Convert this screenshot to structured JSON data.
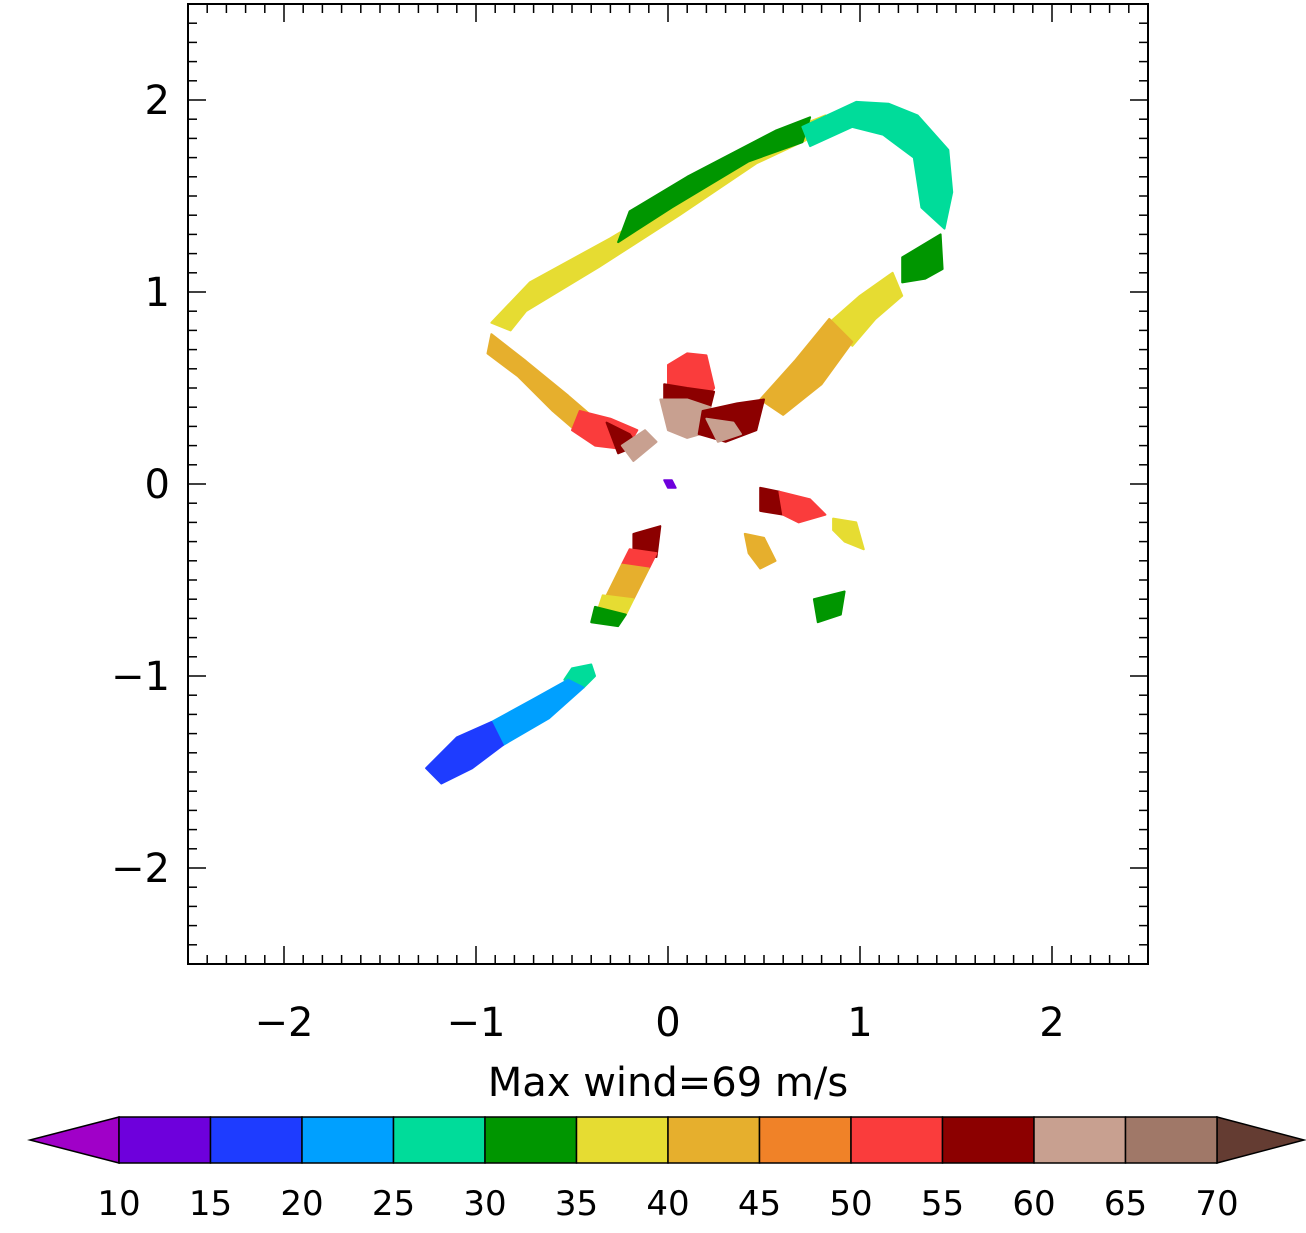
{
  "chart_data": {
    "type": "heatmap",
    "title": "",
    "xlabel": "Max wind=69 m/s",
    "ylabel": "",
    "xlim": [
      -2.5,
      2.5
    ],
    "ylim": [
      -2.5,
      2.5
    ],
    "xticks": [
      "−2",
      "−1",
      "0",
      "1",
      "2"
    ],
    "xtick_values": [
      -2,
      -1,
      0,
      1,
      2
    ],
    "yticks": [
      "2",
      "1",
      "0",
      "−1",
      "−2"
    ],
    "ytick_values": [
      2,
      1,
      0,
      -1,
      -2
    ],
    "grid": false,
    "colorbar": {
      "orientation": "horizontal",
      "placement": "bottom",
      "extend": "both",
      "levels": [
        "10",
        "15",
        "20",
        "25",
        "30",
        "35",
        "40",
        "45",
        "50",
        "55",
        "60",
        "65",
        "70"
      ],
      "level_values": [
        10,
        15,
        20,
        25,
        30,
        35,
        40,
        45,
        50,
        55,
        60,
        65,
        70
      ],
      "under_color": "#a000c8",
      "over_color": "#643c32",
      "colors": [
        "#6e00dc",
        "#1e3cff",
        "#00a0ff",
        "#00dc9a",
        "#009600",
        "#e6dc32",
        "#e6af2d",
        "#f08228",
        "#fa3c3c",
        "#8c0000",
        "#c8a090",
        "#a07868"
      ]
    },
    "wind_regions": [
      {
        "name": "ring-left-upper",
        "value": 37,
        "points": [
          [
            -0.92,
            0.84
          ],
          [
            -0.72,
            1.05
          ],
          [
            -0.3,
            1.28
          ],
          [
            0.1,
            1.52
          ],
          [
            0.52,
            1.8
          ],
          [
            0.82,
            1.92
          ],
          [
            0.78,
            1.82
          ],
          [
            0.46,
            1.67
          ],
          [
            0.06,
            1.4
          ],
          [
            -0.36,
            1.13
          ],
          [
            -0.74,
            0.9
          ],
          [
            -0.82,
            0.8
          ]
        ]
      },
      {
        "name": "ring-top-green",
        "value": 32,
        "points": [
          [
            -0.2,
            1.42
          ],
          [
            0.1,
            1.6
          ],
          [
            0.56,
            1.84
          ],
          [
            0.74,
            1.91
          ],
          [
            0.7,
            1.78
          ],
          [
            0.42,
            1.68
          ],
          [
            0.02,
            1.44
          ],
          [
            -0.26,
            1.26
          ]
        ]
      },
      {
        "name": "ring-top-right",
        "value": 28,
        "points": [
          [
            0.7,
            1.86
          ],
          [
            0.98,
            1.99
          ],
          [
            1.15,
            1.98
          ],
          [
            1.3,
            1.92
          ],
          [
            1.46,
            1.74
          ],
          [
            1.48,
            1.52
          ],
          [
            1.44,
            1.33
          ],
          [
            1.32,
            1.44
          ],
          [
            1.28,
            1.7
          ],
          [
            1.12,
            1.82
          ],
          [
            0.96,
            1.86
          ],
          [
            0.74,
            1.76
          ]
        ]
      },
      {
        "name": "ring-right-green",
        "value": 33,
        "points": [
          [
            1.22,
            1.18
          ],
          [
            1.42,
            1.3
          ],
          [
            1.43,
            1.12
          ],
          [
            1.34,
            1.07
          ],
          [
            1.22,
            1.05
          ]
        ]
      },
      {
        "name": "ring-right-yellow",
        "value": 38,
        "points": [
          [
            0.84,
            0.84
          ],
          [
            1.0,
            0.98
          ],
          [
            1.17,
            1.1
          ],
          [
            1.22,
            0.98
          ],
          [
            1.08,
            0.86
          ],
          [
            0.96,
            0.72
          ]
        ]
      },
      {
        "name": "ring-right-orange",
        "value": 42,
        "points": [
          [
            0.48,
            0.44
          ],
          [
            0.66,
            0.64
          ],
          [
            0.84,
            0.86
          ],
          [
            0.96,
            0.74
          ],
          [
            0.8,
            0.52
          ],
          [
            0.6,
            0.36
          ]
        ]
      },
      {
        "name": "ring-left-orange",
        "value": 42,
        "points": [
          [
            -0.92,
            0.78
          ],
          [
            -0.74,
            0.64
          ],
          [
            -0.52,
            0.46
          ],
          [
            -0.38,
            0.34
          ],
          [
            -0.46,
            0.26
          ],
          [
            -0.6,
            0.38
          ],
          [
            -0.78,
            0.56
          ],
          [
            -0.94,
            0.68
          ]
        ]
      },
      {
        "name": "ring-left-red",
        "value": 52,
        "points": [
          [
            -0.46,
            0.38
          ],
          [
            -0.3,
            0.34
          ],
          [
            -0.16,
            0.28
          ],
          [
            -0.22,
            0.18
          ],
          [
            -0.38,
            0.2
          ],
          [
            -0.5,
            0.28
          ]
        ]
      },
      {
        "name": "ring-left-darkred",
        "value": 58,
        "points": [
          [
            -0.32,
            0.32
          ],
          [
            -0.2,
            0.26
          ],
          [
            -0.16,
            0.2
          ],
          [
            -0.26,
            0.16
          ]
        ]
      },
      {
        "name": "ring-left-brown",
        "value": 62,
        "points": [
          [
            -0.24,
            0.2
          ],
          [
            -0.12,
            0.28
          ],
          [
            -0.06,
            0.22
          ],
          [
            -0.18,
            0.12
          ]
        ]
      },
      {
        "name": "center-red",
        "value": 53,
        "points": [
          [
            0.0,
            0.62
          ],
          [
            0.1,
            0.68
          ],
          [
            0.2,
            0.67
          ],
          [
            0.24,
            0.5
          ],
          [
            0.2,
            0.45
          ],
          [
            0.0,
            0.46
          ]
        ]
      },
      {
        "name": "center-darkred",
        "value": 57,
        "points": [
          [
            -0.02,
            0.52
          ],
          [
            0.1,
            0.5
          ],
          [
            0.24,
            0.48
          ],
          [
            0.22,
            0.4
          ],
          [
            0.06,
            0.38
          ],
          [
            -0.02,
            0.42
          ]
        ]
      },
      {
        "name": "center-brown",
        "value": 64,
        "points": [
          [
            -0.04,
            0.44
          ],
          [
            0.1,
            0.44
          ],
          [
            0.22,
            0.4
          ],
          [
            0.24,
            0.28
          ],
          [
            0.1,
            0.24
          ],
          [
            0.0,
            0.28
          ]
        ]
      },
      {
        "name": "ring-right-darkred",
        "value": 58,
        "points": [
          [
            0.18,
            0.38
          ],
          [
            0.36,
            0.42
          ],
          [
            0.5,
            0.44
          ],
          [
            0.46,
            0.28
          ],
          [
            0.3,
            0.22
          ],
          [
            0.16,
            0.26
          ]
        ]
      },
      {
        "name": "ring-right-brown",
        "value": 62,
        "points": [
          [
            0.2,
            0.34
          ],
          [
            0.34,
            0.32
          ],
          [
            0.38,
            0.26
          ],
          [
            0.26,
            0.22
          ]
        ]
      },
      {
        "name": "south-band-darkred",
        "value": 58,
        "points": [
          [
            -0.18,
            -0.26
          ],
          [
            -0.04,
            -0.22
          ],
          [
            -0.06,
            -0.38
          ],
          [
            -0.18,
            -0.36
          ]
        ]
      },
      {
        "name": "south-band-red",
        "value": 51,
        "points": [
          [
            -0.2,
            -0.34
          ],
          [
            -0.06,
            -0.36
          ],
          [
            -0.1,
            -0.44
          ],
          [
            -0.24,
            -0.42
          ]
        ]
      },
      {
        "name": "south-band-orange",
        "value": 44,
        "points": [
          [
            -0.24,
            -0.42
          ],
          [
            -0.1,
            -0.44
          ],
          [
            -0.18,
            -0.6
          ],
          [
            -0.32,
            -0.58
          ]
        ]
      },
      {
        "name": "south-band-yellow",
        "value": 37,
        "points": [
          [
            -0.34,
            -0.58
          ],
          [
            -0.18,
            -0.6
          ],
          [
            -0.22,
            -0.68
          ],
          [
            -0.36,
            -0.64
          ]
        ]
      },
      {
        "name": "south-band-green",
        "value": 32,
        "points": [
          [
            -0.38,
            -0.64
          ],
          [
            -0.22,
            -0.68
          ],
          [
            -0.26,
            -0.74
          ],
          [
            -0.4,
            -0.72
          ]
        ]
      },
      {
        "name": "se-darkred",
        "value": 57,
        "points": [
          [
            0.48,
            -0.02
          ],
          [
            0.58,
            -0.04
          ],
          [
            0.6,
            -0.16
          ],
          [
            0.48,
            -0.14
          ]
        ]
      },
      {
        "name": "se-red",
        "value": 52,
        "points": [
          [
            0.58,
            -0.04
          ],
          [
            0.74,
            -0.08
          ],
          [
            0.82,
            -0.16
          ],
          [
            0.68,
            -0.2
          ],
          [
            0.6,
            -0.16
          ]
        ]
      },
      {
        "name": "se-yellow",
        "value": 38,
        "points": [
          [
            0.86,
            -0.18
          ],
          [
            0.98,
            -0.2
          ],
          [
            1.02,
            -0.34
          ],
          [
            0.92,
            -0.3
          ],
          [
            0.86,
            -0.24
          ]
        ]
      },
      {
        "name": "se-orange",
        "value": 43,
        "points": [
          [
            0.4,
            -0.26
          ],
          [
            0.5,
            -0.28
          ],
          [
            0.56,
            -0.4
          ],
          [
            0.48,
            -0.44
          ],
          [
            0.42,
            -0.36
          ]
        ]
      },
      {
        "name": "se-green",
        "value": 32,
        "points": [
          [
            0.76,
            -0.6
          ],
          [
            0.92,
            -0.56
          ],
          [
            0.9,
            -0.68
          ],
          [
            0.78,
            -0.72
          ]
        ]
      },
      {
        "name": "sw-teal",
        "value": 27,
        "points": [
          [
            -0.5,
            -0.96
          ],
          [
            -0.4,
            -0.94
          ],
          [
            -0.38,
            -1.0
          ],
          [
            -0.44,
            -1.06
          ],
          [
            -0.54,
            -1.02
          ]
        ]
      },
      {
        "name": "sw-lightblue",
        "value": 23,
        "points": [
          [
            -0.52,
            -1.02
          ],
          [
            -0.44,
            -1.06
          ],
          [
            -0.62,
            -1.22
          ],
          [
            -0.86,
            -1.36
          ],
          [
            -0.92,
            -1.24
          ],
          [
            -0.7,
            -1.12
          ]
        ]
      },
      {
        "name": "sw-blue",
        "value": 18,
        "points": [
          [
            -0.92,
            -1.24
          ],
          [
            -0.86,
            -1.36
          ],
          [
            -1.02,
            -1.48
          ],
          [
            -1.18,
            -1.56
          ],
          [
            -1.26,
            -1.48
          ],
          [
            -1.1,
            -1.32
          ]
        ]
      },
      {
        "name": "center-purple",
        "value": 12,
        "points": [
          [
            -0.02,
            0.02
          ],
          [
            0.02,
            0.02
          ],
          [
            0.04,
            -0.02
          ],
          [
            0.0,
            -0.02
          ]
        ]
      }
    ]
  }
}
